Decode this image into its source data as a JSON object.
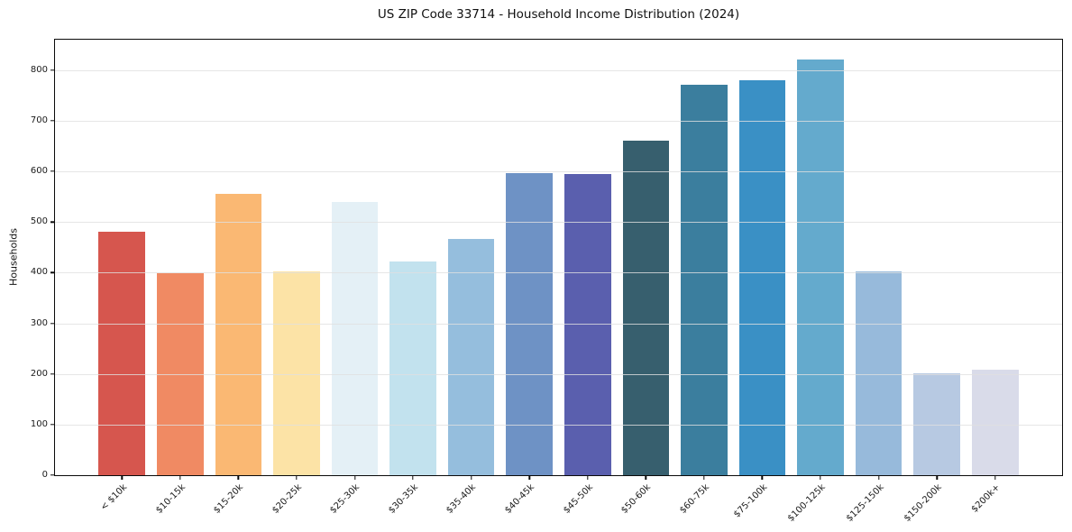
{
  "chart_data": {
    "type": "bar",
    "title": "US ZIP Code 33714 - Household Income Distribution (2024)",
    "xlabel": "",
    "ylabel": "Households",
    "categories": [
      "< $10k",
      "$10-15k",
      "$15-20k",
      "$20-25k",
      "$25-30k",
      "$30-35k",
      "$35-40k",
      "$40-45k",
      "$45-50k",
      "$50-60k",
      "$60-75k",
      "$75-100k",
      "$100-125k",
      "$125-150k",
      "$150-200k",
      "$200k+"
    ],
    "values": [
      480,
      398,
      555,
      403,
      540,
      422,
      467,
      596,
      594,
      660,
      771,
      780,
      820,
      403,
      201,
      208
    ],
    "bar_colors": [
      "#d6564e",
      "#f08a63",
      "#fab873",
      "#fce3a6",
      "#e4f0f6",
      "#c2e2ee",
      "#95bedd",
      "#6e92c5",
      "#5a5fae",
      "#375f6e",
      "#3b7e9e",
      "#3a90c5",
      "#64aacd",
      "#97badb",
      "#b7c9e2",
      "#d9dbe9"
    ],
    "yticks": [
      0,
      100,
      200,
      300,
      400,
      500,
      600,
      700,
      800
    ],
    "ylim": [
      0,
      860
    ],
    "xtick_rotation_deg": 45,
    "grid": "horizontal",
    "grid_color": "#e0e0e0",
    "spine_color": "#0a0a0a",
    "background_color": "#ffffff",
    "legend": "none"
  }
}
